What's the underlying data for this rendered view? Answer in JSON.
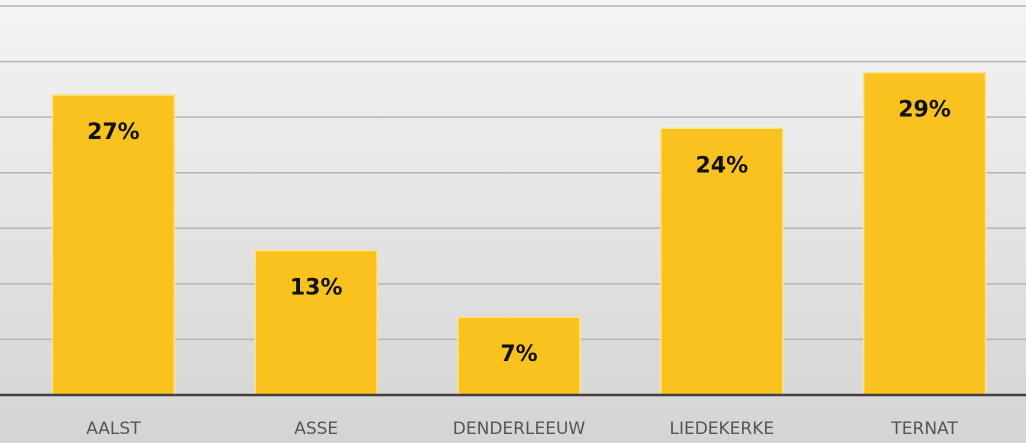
{
  "chart_data": {
    "type": "bar",
    "categories": [
      "AALST",
      "ASSE",
      "DENDERLEEUW",
      "LIEDEKERKE",
      "TERNAT"
    ],
    "values": [
      27,
      13,
      7,
      24,
      29
    ],
    "value_labels": [
      "27%",
      "13%",
      "7%",
      "24%",
      "29%"
    ],
    "color": "#fac21f",
    "ylim": [
      0,
      35
    ],
    "yticks": [
      0,
      5,
      10,
      15,
      20,
      25,
      30,
      35
    ],
    "grid": true
  }
}
